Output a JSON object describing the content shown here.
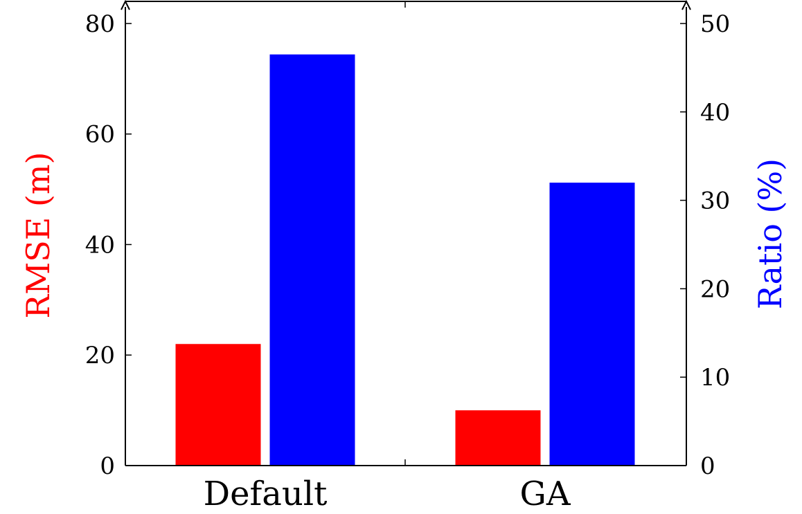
{
  "chart_data": {
    "type": "bar",
    "categories": [
      "Default",
      "GA"
    ],
    "series": [
      {
        "axis": "left",
        "color": "#ff0000",
        "values": [
          22,
          10
        ]
      },
      {
        "axis": "right",
        "color": "#0000ff",
        "values": [
          46.5,
          32
        ]
      }
    ],
    "left_axis": {
      "label": "RMSE (m)",
      "label_color": "#ff0000",
      "ylim": [
        0,
        84
      ],
      "ticks": [
        "0",
        "20",
        "40",
        "60",
        "80"
      ]
    },
    "right_axis": {
      "label": "Ratio (%)",
      "label_color": "#0000ff",
      "ylim": [
        0,
        52.5
      ],
      "ticks": [
        "0",
        "10",
        "20",
        "30",
        "40",
        "50"
      ]
    },
    "grid": false,
    "legend": "none"
  }
}
